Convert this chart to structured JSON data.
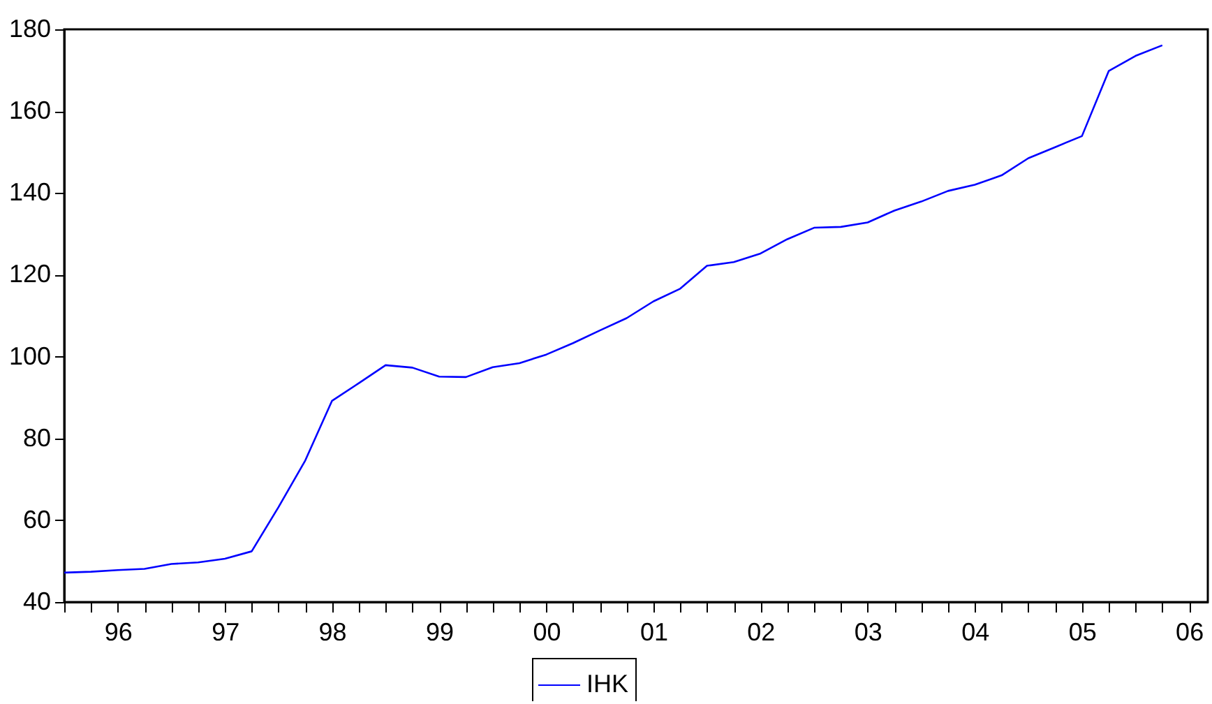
{
  "chart_data": {
    "type": "line",
    "categories": [
      null,
      null,
      "96",
      null,
      null,
      null,
      "97",
      null,
      null,
      null,
      "98",
      null,
      null,
      null,
      "99",
      null,
      null,
      null,
      "00",
      null,
      null,
      null,
      "01",
      null,
      null,
      null,
      "02",
      null,
      null,
      null,
      "03",
      null,
      null,
      null,
      "04",
      null,
      null,
      null,
      "05",
      null,
      null,
      null,
      "06"
    ],
    "series": [
      {
        "name": "IHK",
        "color": "#0000ff",
        "values": [
          47.2,
          47.4,
          47.8,
          48.1,
          49.3,
          49.7,
          50.6,
          52.4,
          63.2,
          74.6,
          89.2,
          93.5,
          97.9,
          97.3,
          95.1,
          95.0,
          97.4,
          98.4,
          100.5,
          103.3,
          106.4,
          109.4,
          113.5,
          116.6,
          122.2,
          123.1,
          125.2,
          128.7,
          131.5,
          131.7,
          132.8,
          135.7,
          137.9,
          140.5,
          142.0,
          144.3,
          148.5,
          151.2,
          153.9,
          169.8,
          173.5,
          176.1,
          null
        ]
      }
    ],
    "ylim": [
      40,
      180
    ],
    "yticks": [
      40,
      60,
      80,
      100,
      120,
      140,
      160,
      180
    ],
    "grid": false,
    "legend": "bottom",
    "line_style": "solid"
  }
}
